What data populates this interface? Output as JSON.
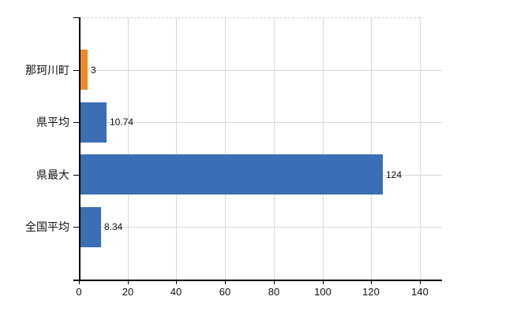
{
  "chart_data": {
    "type": "bar",
    "orientation": "horizontal",
    "categories": [
      "那珂川町",
      "県平均",
      "県最大",
      "全国平均"
    ],
    "values": [
      3,
      10.74,
      124,
      8.34
    ],
    "value_labels": [
      "3",
      "10.74",
      "124",
      "8.34"
    ],
    "bar_colors": [
      "#ee8a2a",
      "#3b6eb4",
      "#3b6eb4",
      "#3b6eb4"
    ],
    "xlim": [
      0,
      140
    ],
    "xticks": [
      0,
      20,
      40,
      60,
      80,
      100,
      120,
      140
    ],
    "xtick_labels": [
      "0",
      "20",
      "40",
      "60",
      "80",
      "100",
      "120",
      "140"
    ],
    "grid": true,
    "legend": "none",
    "highlight_category": "那珂川町"
  },
  "colors": {
    "bar_blue": "#3b6eb4",
    "bar_orange": "#ee8a2a",
    "gridline": "#d9d9d9",
    "axis": "#000000",
    "text": "#111111",
    "background": "#ffffff"
  }
}
